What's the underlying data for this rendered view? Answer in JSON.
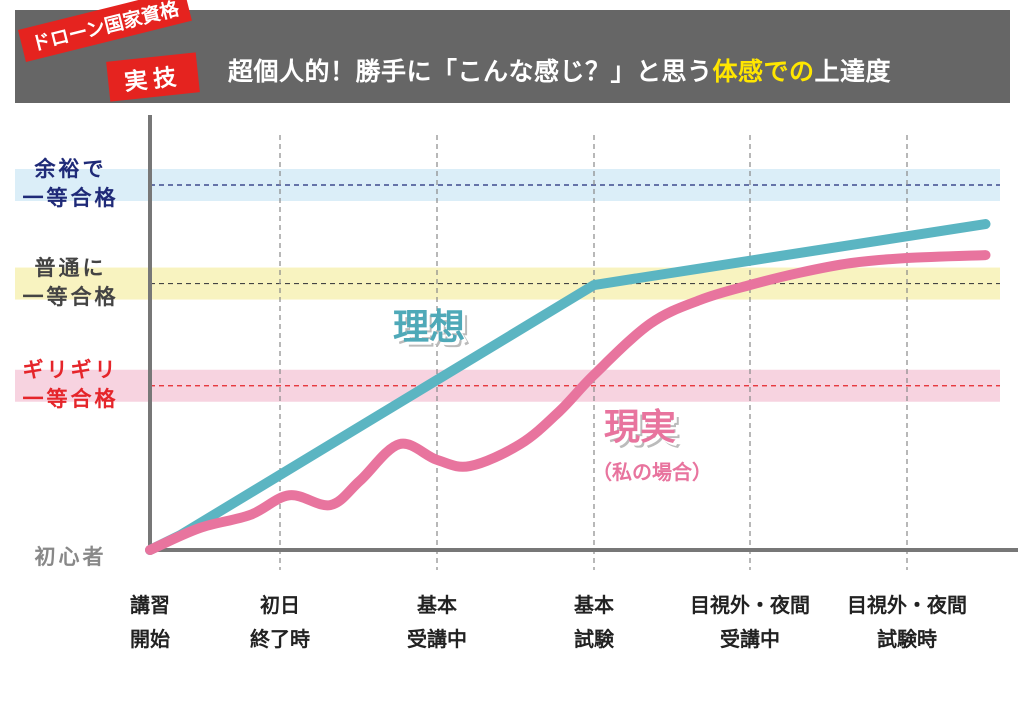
{
  "header": {
    "tag_line1": "ドローン国家資格",
    "tag_line2": "実技",
    "title_part1": "超個人的！勝手に「こんな感じ？」と思う",
    "title_highlight": "体感での",
    "title_part2": "上達度"
  },
  "colors": {
    "header_bg": "#666666",
    "tag_red": "#e5231f",
    "highlight": "#ffe600",
    "ideal": "#5bb5c2",
    "real": "#e8749e",
    "navy": "#1f2a78",
    "level_red": "#e5252a"
  },
  "chart_data": {
    "type": "line",
    "categories": [
      "講習\n開始",
      "初日\n終了時",
      "基本\n受講中",
      "基本\n試験",
      "目視外・夜間\n受講中",
      "目視外・夜間\n試験時"
    ],
    "levels": [
      {
        "label_line1": "余裕で",
        "label_line2": "一等合格",
        "value": 100,
        "color": "#1f2a78",
        "band": "#dbeef8"
      },
      {
        "label_line1": "普通に",
        "label_line2": "一等合格",
        "value": 73,
        "color": "#444444",
        "band": "#f8f3c0"
      },
      {
        "label_line1": "ギリギリ",
        "label_line2": "一等合格",
        "value": 45,
        "color": "#e5252a",
        "band": "#f7d3e0"
      }
    ],
    "baseline_label": "初心者",
    "series": [
      {
        "name": "理想",
        "color": "#5bb5c2",
        "points": [
          [
            0,
            0
          ],
          [
            0.23,
            4
          ],
          [
            3,
            72.6
          ],
          [
            5.5,
            89.3
          ]
        ]
      },
      {
        "name": "現実",
        "note": "（私の場合）",
        "color": "#e8749e",
        "points": [
          [
            0,
            0
          ],
          [
            0.38,
            6
          ],
          [
            0.77,
            9.6
          ],
          [
            1.06,
            15
          ],
          [
            1.32,
            12.3
          ],
          [
            1.51,
            19
          ],
          [
            1.76,
            29
          ],
          [
            2,
            24.7
          ],
          [
            2.21,
            23
          ],
          [
            2.53,
            29
          ],
          [
            2.78,
            38
          ],
          [
            3,
            48
          ],
          [
            3.36,
            62
          ],
          [
            3.68,
            68.5
          ],
          [
            4,
            72.6
          ],
          [
            4.32,
            76
          ],
          [
            4.64,
            78.6
          ],
          [
            5,
            80
          ],
          [
            5.5,
            80.8
          ]
        ]
      }
    ],
    "xlabel": "",
    "ylabel": ""
  }
}
